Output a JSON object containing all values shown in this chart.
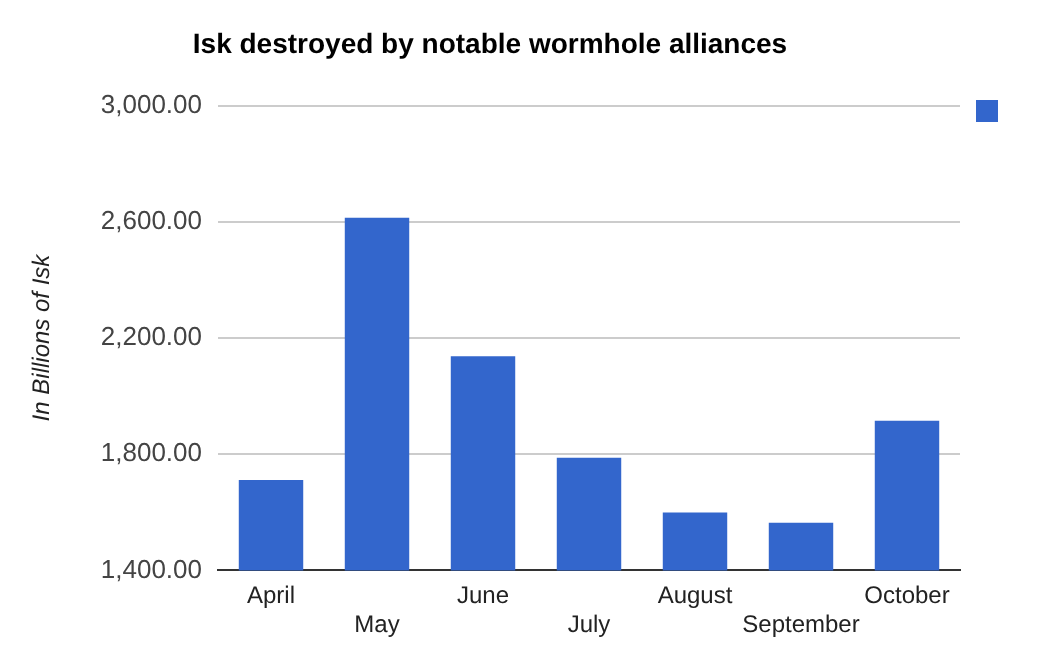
{
  "chart_data": {
    "type": "bar",
    "title": "Isk destroyed by notable wormhole alliances",
    "ylabel": "In Billions of Isk",
    "categories": [
      "April",
      "May",
      "June",
      "July",
      "August",
      "September",
      "October"
    ],
    "series": [
      {
        "color": "#3366cc",
        "values": [
          1711,
          2614,
          2137,
          1788,
          1599,
          1564,
          1915
        ]
      }
    ],
    "ylim": [
      1400,
      3000
    ],
    "yticks": [
      {
        "value": 1400,
        "label": "1,400.00"
      },
      {
        "value": 1800,
        "label": "1,800.00"
      },
      {
        "value": 2200,
        "label": "2,200.00"
      },
      {
        "value": 2600,
        "label": "2,600.00"
      },
      {
        "value": 3000,
        "label": "3,000.00"
      }
    ],
    "grid": "y"
  }
}
